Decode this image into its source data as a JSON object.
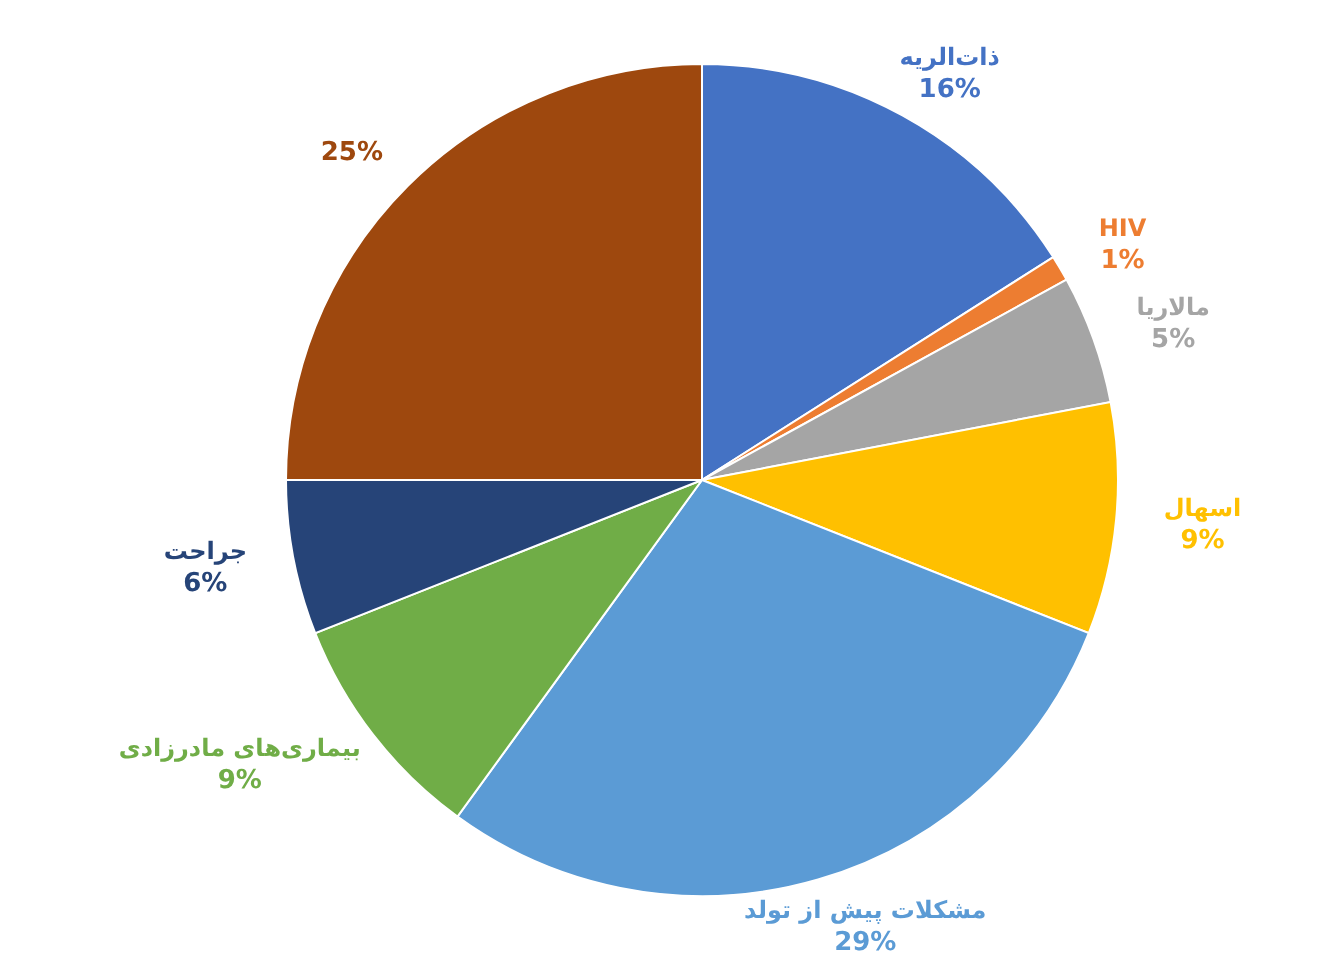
{
  "chart_data": {
    "type": "pie",
    "categories": [
      "ذات‌الریه",
      "HIV",
      "مالاریا",
      "اسهال",
      "مشکلات پیش از تولد",
      "بیماری‌های مادرزادی",
      "جراحت",
      null
    ],
    "values": [
      16,
      1,
      5,
      9,
      29,
      9,
      6,
      25
    ],
    "value_labels": [
      "16%",
      "1%",
      "5%",
      "9%",
      "29%",
      "9%",
      "6%",
      "25%"
    ],
    "colors": [
      "#4472c4",
      "#ed7d31",
      "#a5a5a5",
      "#ffc000",
      "#5b9bd5",
      "#70ad47",
      "#264478",
      "#9e480e"
    ]
  }
}
